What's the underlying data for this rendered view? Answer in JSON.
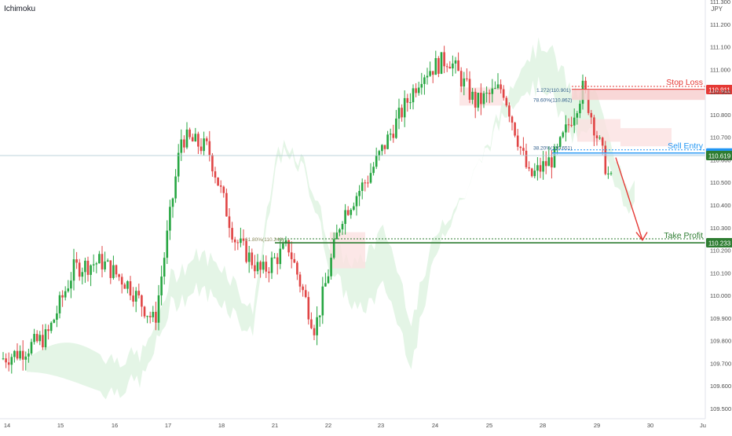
{
  "indicator_label": "Ichimoku",
  "currency_label": "JPY",
  "colors": {
    "up": "#26a641",
    "down": "#e04545",
    "cloud_bull": "#dff3e2",
    "cloud_bear": "#fbe1e1",
    "stop": "#e53935",
    "entry": "#2196f3",
    "target": "#2e7d32",
    "grid_line": "#b3c7cf",
    "axis_text": "#4b4b4b"
  },
  "chart_data": {
    "type": "candlestick",
    "title": "",
    "ylim": [
      109.45,
      111.3
    ],
    "y_ticks": [
      "111.300",
      "111.200",
      "111.100",
      "111.000",
      "110.900",
      "110.800",
      "110.700",
      "110.600",
      "110.500",
      "110.400",
      "110.300",
      "110.200",
      "110.100",
      "110.000",
      "109.900",
      "109.800",
      "109.700",
      "109.600",
      "109.500"
    ],
    "x_ticks": [
      "14",
      "15",
      "16",
      "17",
      "18",
      "21",
      "22",
      "23",
      "24",
      "25",
      "28",
      "29",
      "30",
      "Ju"
    ],
    "price_path": [
      {
        "day": "14",
        "close": 109.75
      },
      {
        "day": "14",
        "close": 109.82
      },
      {
        "day": "15",
        "close": 110.12
      },
      {
        "day": "15",
        "close": 110.15
      },
      {
        "day": "16",
        "close": 110.05
      },
      {
        "day": "16",
        "close": 109.88
      },
      {
        "day": "17",
        "close": 110.7
      },
      {
        "day": "17",
        "close": 110.65
      },
      {
        "day": "18",
        "close": 110.25
      },
      {
        "day": "18",
        "close": 110.1
      },
      {
        "day": "21",
        "close": 110.22
      },
      {
        "day": "21",
        "close": 109.85
      },
      {
        "day": "22",
        "close": 110.35
      },
      {
        "day": "22",
        "close": 110.52
      },
      {
        "day": "23",
        "close": 110.75
      },
      {
        "day": "23",
        "close": 110.98
      },
      {
        "day": "24",
        "close": 111.05
      },
      {
        "day": "24",
        "close": 110.85
      },
      {
        "day": "25",
        "close": 110.92
      },
      {
        "day": "25",
        "close": 110.52
      },
      {
        "day": "28",
        "close": 110.62
      },
      {
        "day": "28",
        "close": 110.92
      },
      {
        "day": "29",
        "close": 110.5
      },
      {
        "day": "29",
        "close": 110.61
      }
    ],
    "levels": [
      {
        "label": "Stop Loss",
        "price": 110.911,
        "price_label": "110.911",
        "role": "stop"
      },
      {
        "label": "Sell Entry",
        "price": 110.63,
        "price_label": "110.630",
        "role": "entry"
      },
      {
        "label": "",
        "price": 110.619,
        "price_label": "110.619",
        "role": "current"
      },
      {
        "label": "Take Profit",
        "price": 110.233,
        "price_label": "110.233",
        "role": "target"
      }
    ],
    "fib_annotations": [
      {
        "text": "1.272(110.901)"
      },
      {
        "text": "78.60%(110.862)"
      },
      {
        "text": "38.20%(110.651)"
      },
      {
        "text": "61.80%(110.243)"
      }
    ]
  }
}
